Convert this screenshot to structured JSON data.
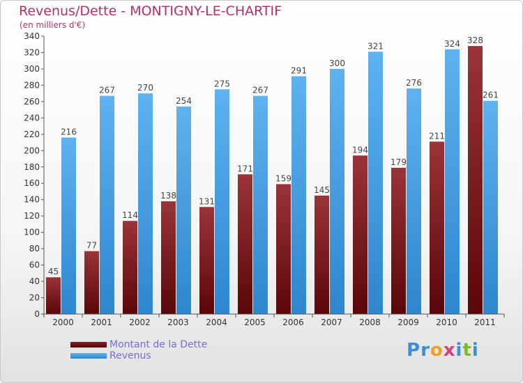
{
  "header": {
    "title": "Revenus/Dette - MONTIGNY-LE-CHARTIF",
    "subtitle": "(en milliers d'€)"
  },
  "colors": {
    "dette": "#6b0f12",
    "revenus": "#4aa3e6",
    "title": "#b0306e",
    "legend_text": "#6f6fd8"
  },
  "logo": {
    "text": "Proxiti",
    "letters": [
      {
        "ch": "P",
        "color": "#3a8fd9"
      },
      {
        "ch": "r",
        "color": "#3a8fd9"
      },
      {
        "ch": "o",
        "color": "#f0a020"
      },
      {
        "ch": "x",
        "color": "#d84080"
      },
      {
        "ch": "i",
        "color": "#3a8fd9"
      },
      {
        "ch": "t",
        "color": "#80b830"
      },
      {
        "ch": "i",
        "color": "#3a8fd9"
      }
    ]
  },
  "chart_data": {
    "type": "bar",
    "categories": [
      "2000",
      "2001",
      "2002",
      "2003",
      "2004",
      "2005",
      "2006",
      "2007",
      "2008",
      "2009",
      "2010",
      "2011"
    ],
    "series": [
      {
        "name": "Montant de la Dette",
        "values": [
          45,
          77,
          114,
          138,
          131,
          171,
          159,
          145,
          194,
          179,
          211,
          328
        ]
      },
      {
        "name": "Revenus",
        "values": [
          216,
          267,
          270,
          254,
          275,
          267,
          291,
          300,
          321,
          276,
          324,
          261
        ]
      }
    ],
    "title": "Revenus/Dette - MONTIGNY-LE-CHARTIF",
    "subtitle": "(en milliers d'€)",
    "ylim": [
      0,
      340
    ],
    "ytick_step": 20,
    "grid": false,
    "legend_position": "bottom-left"
  }
}
